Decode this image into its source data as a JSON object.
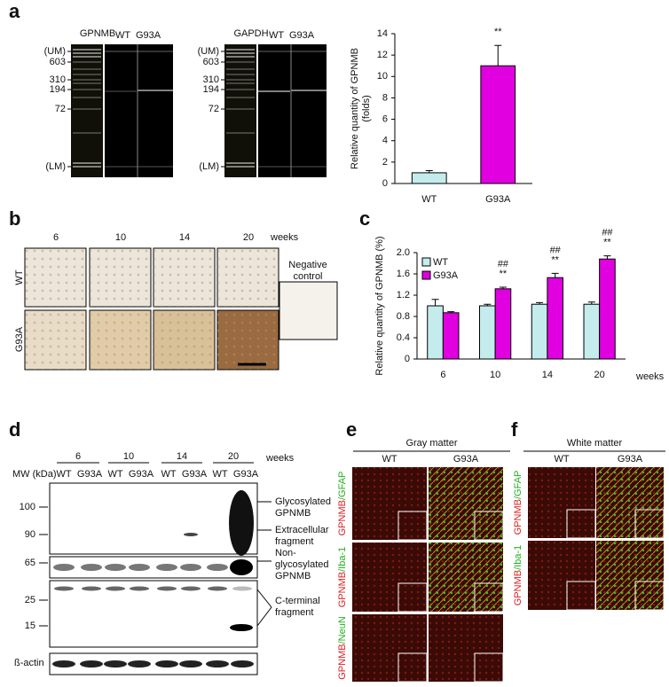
{
  "figure": {
    "panel_labels": [
      "a",
      "b",
      "c",
      "d",
      "e",
      "f"
    ],
    "a": {
      "gel_titles": [
        "GPNMB",
        "GAPDH"
      ],
      "lanes": [
        "WT",
        "G93A"
      ],
      "ladder": [
        "(UM)",
        "603",
        "310",
        "194",
        "72",
        "(LM)"
      ]
    },
    "b": {
      "weeks": [
        "6",
        "10",
        "14",
        "20"
      ],
      "weeks_label": "weeks",
      "rows": [
        "WT",
        "G93A"
      ],
      "negative": [
        "Negative",
        "control"
      ]
    },
    "d": {
      "weeks": [
        "6",
        "10",
        "14",
        "20"
      ],
      "weeks_label": "weeks",
      "mw_label": "MW (kDa)",
      "lanes": [
        "WT",
        "G93A"
      ],
      "mw": [
        "100",
        "90",
        "65",
        "25",
        "15"
      ],
      "notes": [
        [
          "Glycosylated",
          "GPNMB"
        ],
        [
          "Extracellular",
          "fragment"
        ],
        [
          "Non-",
          "glycosylated",
          "GPNMB"
        ],
        [
          "C-terminal",
          "fragment"
        ]
      ],
      "loading": "ß-actin"
    },
    "e": {
      "title": "Gray matter",
      "cols": [
        "WT",
        "G93A"
      ],
      "rows": [
        [
          "GPNMB",
          "/GFAP"
        ],
        [
          "GPNMB",
          "/Iba-1"
        ],
        [
          "GPNMB",
          "/NeuN"
        ]
      ]
    },
    "f": {
      "title": "White matter",
      "cols": [
        "WT",
        "G93A"
      ],
      "rows": [
        [
          "GPNMB",
          "/GFAP"
        ],
        [
          "GPNMB",
          "/Iba-1"
        ]
      ]
    }
  },
  "chart_data": [
    {
      "type": "bar",
      "ylabel": [
        "Relative quantity of GPNMB",
        "(folds)"
      ],
      "categories": [
        "WT",
        "G93A"
      ],
      "values": [
        1.0,
        11.0
      ],
      "errors": [
        0.2,
        1.9
      ],
      "colors": [
        "#c4ecec",
        "#e000e0"
      ],
      "ylim": [
        0,
        14
      ],
      "yticks": [
        0,
        2,
        4,
        6,
        8,
        10,
        12,
        14
      ],
      "annotations": [
        {
          "x": "G93A",
          "text": "**"
        }
      ]
    },
    {
      "type": "grouped_bar",
      "ylabel": "Relative quantity of GPNMB (%)",
      "xlabel": "weeks",
      "categories": [
        "6",
        "10",
        "14",
        "20"
      ],
      "series": [
        {
          "name": "WT",
          "color": "#c4ecec",
          "values": [
            1.0,
            1.0,
            1.03,
            1.03
          ],
          "errors": [
            0.12,
            0.03,
            0.03,
            0.04
          ]
        },
        {
          "name": "G93A",
          "color": "#e000e0",
          "values": [
            0.87,
            1.32,
            1.53,
            1.88
          ],
          "errors": [
            0.02,
            0.03,
            0.08,
            0.06
          ]
        }
      ],
      "ylim": [
        0,
        2
      ],
      "yticks": [
        0,
        {
          "value": 0.4,
          "label": "0.4"
        },
        {
          "value": 0.8,
          "label": "0.8"
        },
        {
          "value": 1.2,
          "label": "1.2"
        },
        {
          "value": 1.6,
          "label": "1.6"
        },
        {
          "value": 2,
          "label": "2.0"
        }
      ],
      "legend": "upper left",
      "annotations": [
        {
          "x": "10",
          "text": "**"
        },
        {
          "x": "10",
          "text": "##"
        },
        {
          "x": "14",
          "text": "**"
        },
        {
          "x": "14",
          "text": "##"
        },
        {
          "x": "20",
          "text": "**"
        },
        {
          "x": "20",
          "text": "##"
        }
      ]
    }
  ]
}
